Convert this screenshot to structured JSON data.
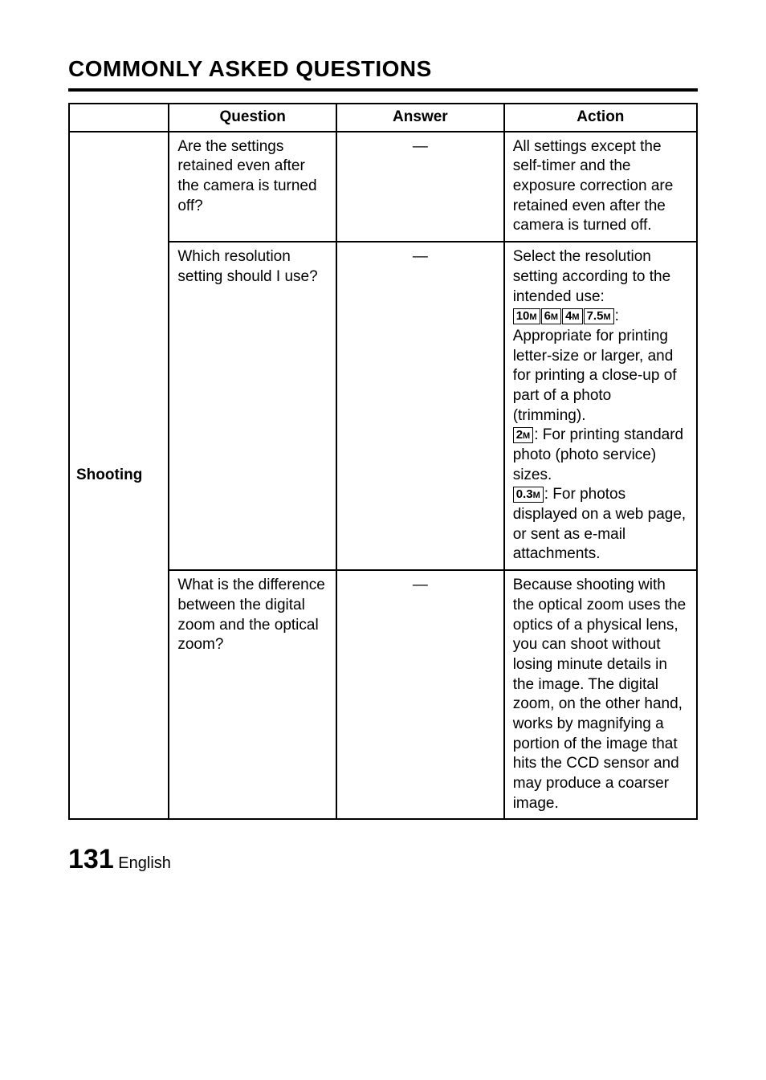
{
  "heading": "COMMONLY ASKED QUESTIONS",
  "headers": {
    "question": "Question",
    "answer": "Answer",
    "action": "Action"
  },
  "category": "Shooting",
  "rows": [
    {
      "question": "Are the settings retained even after the camera is turned off?",
      "answer": "—",
      "action": "All settings except the self-timer and the exposure correction are retained even after the camera is turned off."
    },
    {
      "question": "Which resolution setting should I use?",
      "answer": "—",
      "action_pre": "Select the resolution setting according to the intended use:",
      "res_group1": [
        "10",
        "6",
        "4",
        "7.5"
      ],
      "action_mid1": ": Appropriate for printing letter-size or larger, and for printing a close-up of part of a photo (trimming).",
      "res_single2": "2",
      "action_mid2": ": For printing standard photo (photo service) sizes.",
      "res_single3": "0.3",
      "action_mid3": ": For photos displayed on a web page, or sent as e-mail attachments."
    },
    {
      "question": "What is the difference between the digital zoom and the optical zoom?",
      "answer": "—",
      "action": "Because shooting with the optical zoom uses the optics of a physical lens, you can shoot without losing minute details in the image. The digital zoom, on the other hand, works by magnifying a portion of the image that hits the CCD sensor and may produce a coarser image."
    }
  ],
  "footer": {
    "page_num": "131",
    "lang": "English"
  },
  "colors": {
    "background": "#ffffff",
    "text": "#000000",
    "border": "#000000"
  },
  "fonts": {
    "body_size": 19,
    "heading_size": 28,
    "page_num_size": 34
  }
}
